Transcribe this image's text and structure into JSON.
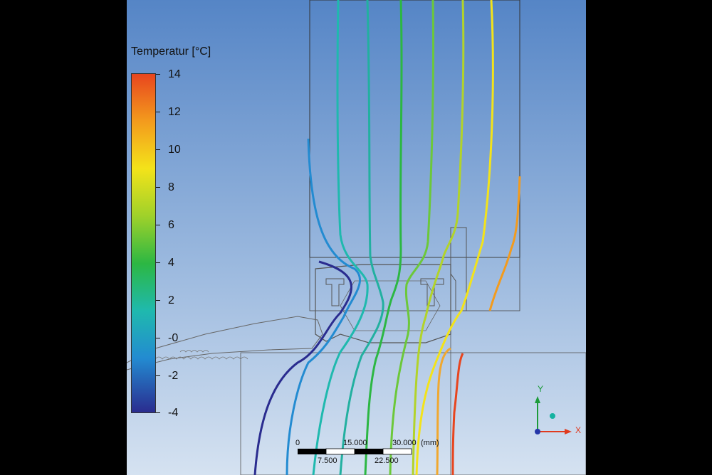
{
  "legend": {
    "title": "Temperatur [°C]",
    "ticks": [
      "14",
      "12",
      "10",
      "8",
      "6",
      "4",
      "2",
      "-0",
      "-2",
      "-4"
    ],
    "min": -4,
    "max": 14
  },
  "scale_bar": {
    "top_labels": [
      "0",
      "15.000",
      "30.000"
    ],
    "bottom_labels": [
      "7.500",
      "22.500"
    ],
    "unit": "(mm)"
  },
  "axes": {
    "x_label": "X",
    "y_label": "Y"
  },
  "colors": {
    "x_axis": "#e03a1e",
    "y_axis": "#1c9b3a",
    "z_axis": "#2436a8",
    "background_top": "#5585c6",
    "background_bottom": "#d5e2f1"
  }
}
